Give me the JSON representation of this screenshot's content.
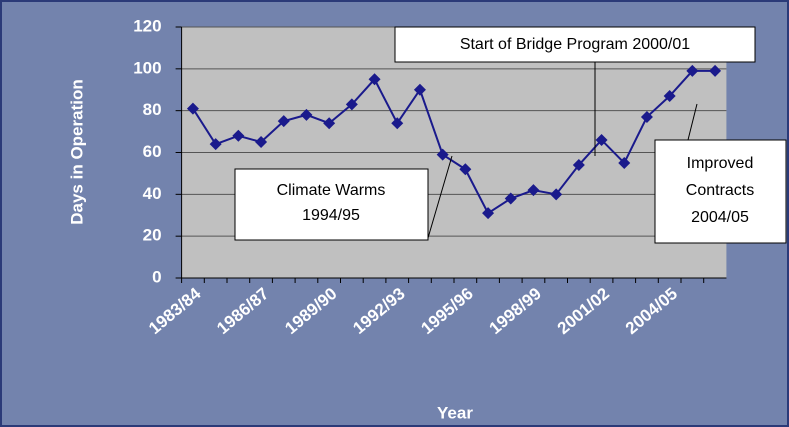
{
  "chart_data": {
    "type": "line",
    "y_label": "Days in Operation",
    "x_label": "Year",
    "categories": [
      "1983/84",
      null,
      null,
      "1986/87",
      null,
      null,
      "1989/90",
      null,
      null,
      "1992/93",
      null,
      null,
      "1995/96",
      null,
      null,
      "1998/99",
      null,
      null,
      "2001/02",
      null,
      null,
      "2004/05",
      null,
      null
    ],
    "series": [
      {
        "color": "#1a1a8c",
        "values": [
          81,
          64,
          68,
          65,
          75,
          78,
          74,
          83,
          95,
          74,
          90,
          59,
          52,
          31,
          38,
          42,
          40,
          54,
          66,
          55,
          77,
          87,
          99,
          99
        ]
      }
    ],
    "ylim": [
      0,
      120
    ],
    "yticks": [
      0,
      20,
      40,
      60,
      80,
      100,
      120
    ],
    "grid": true,
    "annotations": [
      [
        "Climate Warms",
        "1994/95"
      ],
      [
        "Start of Bridge Program 2000/01"
      ],
      [
        "Improved",
        "Contracts",
        "2004/05"
      ]
    ]
  }
}
